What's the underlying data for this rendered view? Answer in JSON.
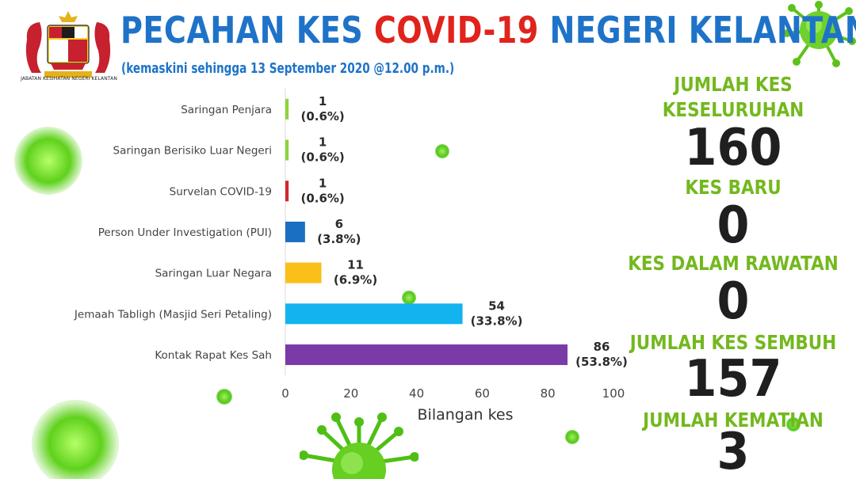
{
  "header": {
    "title_part1": "PECAHAN KES",
    "title_highlight": "COVID-19",
    "title_part2": "NEGERI KELANTAN",
    "subtitle": "(kemaskini sehingga 13 September 2020 @12.00 p.m.)",
    "crest_caption": "JABATAN KESIHATAN NEGERI KELANTAN"
  },
  "colors": {
    "title_blue": "#1e73c8",
    "title_red": "#e0231c",
    "stat_green": "#73b81e",
    "virus_green": "#55c61b"
  },
  "chart_data": {
    "type": "bar",
    "orientation": "horizontal",
    "categories": [
      "Saringan Penjara",
      "Saringan Berisiko Luar Negeri",
      "Survelan COVID-19",
      "Person Under Investigation (PUI)",
      "Saringan Luar Negara",
      "Jemaah Tabligh (Masjid Seri Petaling)",
      "Kontak Rapat Kes Sah"
    ],
    "values": [
      1,
      1,
      1,
      6,
      11,
      54,
      86
    ],
    "percent_labels": [
      "(0.6%)",
      "(0.6%)",
      "(0.6%)",
      "(3.8%)",
      "(6.9%)",
      "(33.8%)",
      "(53.8%)"
    ],
    "bar_colors": [
      "#8dd33b",
      "#8dd33b",
      "#d3262b",
      "#1a6fc2",
      "#fbbf1a",
      "#12b3ee",
      "#7a3aa8"
    ],
    "xlabel": "Bilangan kes",
    "ylabel": "",
    "xlim": [
      0,
      100
    ],
    "xticks": [
      0,
      20,
      40,
      60,
      80,
      100
    ],
    "grid": false
  },
  "stats": [
    {
      "label_lines": [
        "JUMLAH KES",
        "KESELURUHAN"
      ],
      "value": "160"
    },
    {
      "label_lines": [
        "KES BARU"
      ],
      "value": "0"
    },
    {
      "label_lines": [
        "KES DALAM RAWATAN"
      ],
      "value": "0"
    },
    {
      "label_lines": [
        "JUMLAH KES SEMBUH"
      ],
      "value": "157"
    },
    {
      "label_lines": [
        "JUMLAH KEMATIAN"
      ],
      "value": "3"
    }
  ],
  "decorations": {
    "icon_names": [
      "virus-icon",
      "crest-icon"
    ]
  }
}
